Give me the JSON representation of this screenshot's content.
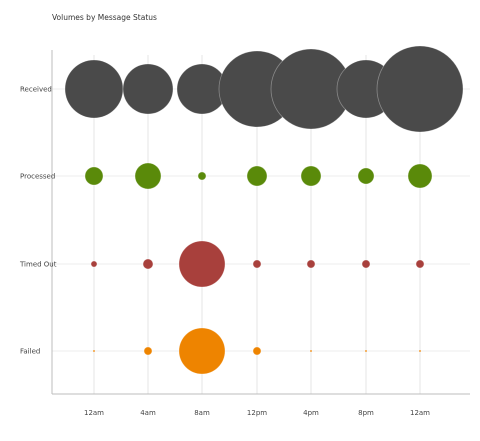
{
  "chart_data": {
    "type": "bubble-matrix",
    "title": "Volumes by Message Status",
    "x": [
      "12am",
      "4am",
      "8am",
      "12pm",
      "4pm",
      "8pm",
      "12am"
    ],
    "rows": [
      {
        "name": "Received",
        "color": "#4a4a4a",
        "sizes": [
          29,
          25,
          25,
          38,
          40,
          29,
          43
        ]
      },
      {
        "name": "Processed",
        "color": "#5a8a0a",
        "sizes": [
          9,
          13,
          4,
          10,
          10,
          8,
          12
        ]
      },
      {
        "name": "Timed Out",
        "color": "#a8403c",
        "sizes": [
          3,
          5,
          23,
          4,
          4,
          4,
          4
        ]
      },
      {
        "name": "Failed",
        "color": "#ee8400",
        "sizes": [
          1,
          4,
          23,
          4,
          1,
          1,
          1
        ]
      }
    ],
    "grid": true
  }
}
